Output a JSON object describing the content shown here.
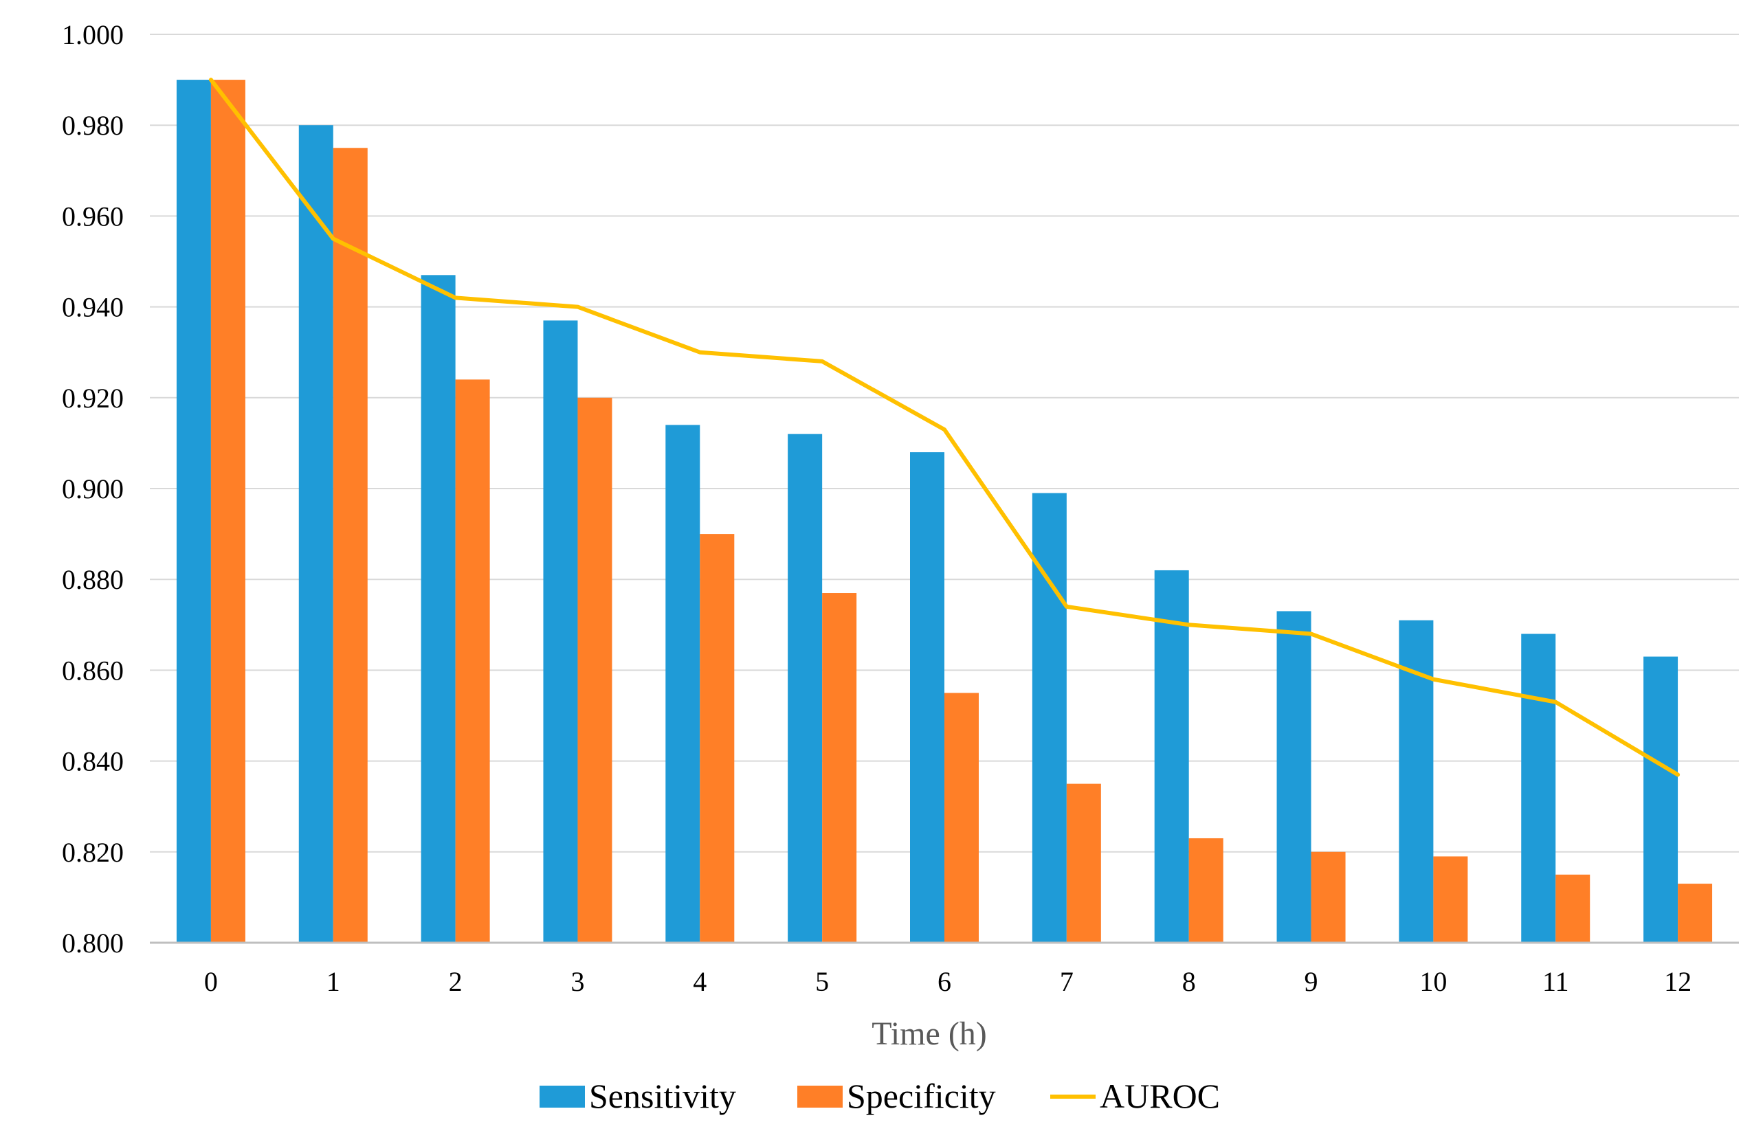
{
  "chart_data": {
    "type": "bar",
    "title": "",
    "xlabel": "Time (h)",
    "ylabel": "",
    "ylim": [
      0.8,
      1.0
    ],
    "ytick_step": 0.02,
    "ytick_labels": [
      "0.800",
      "0.820",
      "0.840",
      "0.860",
      "0.880",
      "0.900",
      "0.920",
      "0.940",
      "0.960",
      "0.980",
      "1.000"
    ],
    "grid": true,
    "legend_position": "bottom",
    "categories": [
      "0",
      "1",
      "2",
      "3",
      "4",
      "5",
      "6",
      "7",
      "8",
      "9",
      "10",
      "11",
      "12"
    ],
    "series": [
      {
        "name": "Sensitivity",
        "kind": "bar",
        "color": "#1f9bd7",
        "values": [
          0.99,
          0.98,
          0.947,
          0.937,
          0.914,
          0.912,
          0.908,
          0.899,
          0.882,
          0.873,
          0.871,
          0.868,
          0.863
        ]
      },
      {
        "name": "Specificity",
        "kind": "bar",
        "color": "#ff7f27",
        "values": [
          0.99,
          0.975,
          0.924,
          0.92,
          0.89,
          0.877,
          0.855,
          0.835,
          0.823,
          0.82,
          0.819,
          0.815,
          0.813
        ]
      },
      {
        "name": "AUROC",
        "kind": "line",
        "color": "#ffc000",
        "values": [
          0.99,
          0.955,
          0.942,
          0.94,
          0.93,
          0.928,
          0.913,
          0.874,
          0.87,
          0.868,
          0.858,
          0.853,
          0.837
        ]
      }
    ]
  }
}
